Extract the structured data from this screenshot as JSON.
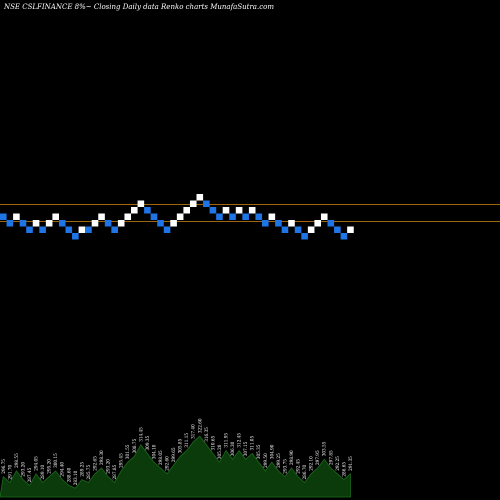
{
  "title": "NSE CSLFINANCE 8%~  Closing Daily data  Renko  charts MunafaSutra.com",
  "chart_data": {
    "type": "renko",
    "title": "NSE CSLFINANCE 8%~  Closing Daily data  Renko  charts MunafaSutra.com",
    "colors": {
      "up": "#ffffff",
      "down": "#1f74e6",
      "reference_line": "#a0660e",
      "volume_area": "#0b3a0b",
      "volume_edge": "#1c6b1c",
      "background": "#000000"
    },
    "reference_levels": [
      320.1,
      296.4
    ],
    "bricks": [
      {
        "dir": "down",
        "level": 1
      },
      {
        "dir": "down",
        "level": 0
      },
      {
        "dir": "up",
        "level": 1
      },
      {
        "dir": "down",
        "level": 0
      },
      {
        "dir": "down",
        "level": -1
      },
      {
        "dir": "up",
        "level": 0
      },
      {
        "dir": "down",
        "level": -1
      },
      {
        "dir": "up",
        "level": 0
      },
      {
        "dir": "up",
        "level": 1
      },
      {
        "dir": "down",
        "level": 0
      },
      {
        "dir": "down",
        "level": -1
      },
      {
        "dir": "down",
        "level": -2
      },
      {
        "dir": "up",
        "level": -1
      },
      {
        "dir": "down",
        "level": -1
      },
      {
        "dir": "up",
        "level": 0
      },
      {
        "dir": "up",
        "level": 1
      },
      {
        "dir": "down",
        "level": 0
      },
      {
        "dir": "down",
        "level": -1
      },
      {
        "dir": "up",
        "level": 0
      },
      {
        "dir": "up",
        "level": 1
      },
      {
        "dir": "up",
        "level": 2
      },
      {
        "dir": "up",
        "level": 3
      },
      {
        "dir": "down",
        "level": 2
      },
      {
        "dir": "down",
        "level": 1
      },
      {
        "dir": "down",
        "level": 0
      },
      {
        "dir": "down",
        "level": -1
      },
      {
        "dir": "up",
        "level": 0
      },
      {
        "dir": "up",
        "level": 1
      },
      {
        "dir": "up",
        "level": 2
      },
      {
        "dir": "up",
        "level": 3
      },
      {
        "dir": "up",
        "level": 4
      },
      {
        "dir": "down",
        "level": 3
      },
      {
        "dir": "down",
        "level": 2
      },
      {
        "dir": "down",
        "level": 1
      },
      {
        "dir": "up",
        "level": 2
      },
      {
        "dir": "down",
        "level": 1
      },
      {
        "dir": "up",
        "level": 2
      },
      {
        "dir": "down",
        "level": 1
      },
      {
        "dir": "up",
        "level": 2
      },
      {
        "dir": "down",
        "level": 1
      },
      {
        "dir": "down",
        "level": 0
      },
      {
        "dir": "up",
        "level": 1
      },
      {
        "dir": "down",
        "level": 0
      },
      {
        "dir": "down",
        "level": -1
      },
      {
        "dir": "up",
        "level": 0
      },
      {
        "dir": "down",
        "level": -1
      },
      {
        "dir": "down",
        "level": -2
      },
      {
        "dir": "up",
        "level": -1
      },
      {
        "dir": "up",
        "level": 0
      },
      {
        "dir": "up",
        "level": 1
      },
      {
        "dir": "down",
        "level": 0
      },
      {
        "dir": "down",
        "level": -1
      },
      {
        "dir": "down",
        "level": -2
      },
      {
        "dir": "up",
        "level": -1
      }
    ],
    "volume": [
      {
        "v": 7,
        "label": "296.75"
      },
      {
        "v": 5,
        "label": "291.70"
      },
      {
        "v": 9,
        "label": "298.55"
      },
      {
        "v": 6,
        "label": "293.20"
      },
      {
        "v": 4,
        "label": "287.45"
      },
      {
        "v": 8,
        "label": "294.05"
      },
      {
        "v": 5,
        "label": "289.10"
      },
      {
        "v": 7,
        "label": "295.20"
      },
      {
        "v": 9,
        "label": "300.15"
      },
      {
        "v": 6,
        "label": "294.40"
      },
      {
        "v": 4,
        "label": "288.60"
      },
      {
        "v": 3,
        "label": "283.10"
      },
      {
        "v": 6,
        "label": "289.25"
      },
      {
        "v": 5,
        "label": "285.75"
      },
      {
        "v": 8,
        "label": "292.65"
      },
      {
        "v": 10,
        "label": "298.30"
      },
      {
        "v": 7,
        "label": "293.20"
      },
      {
        "v": 5,
        "label": "287.85"
      },
      {
        "v": 9,
        "label": "295.45"
      },
      {
        "v": 12,
        "label": "301.55"
      },
      {
        "v": 14,
        "label": "308.75"
      },
      {
        "v": 18,
        "label": "314.45"
      },
      {
        "v": 15,
        "label": "309.35"
      },
      {
        "v": 12,
        "label": "304.10"
      },
      {
        "v": 10,
        "label": "298.05"
      },
      {
        "v": 8,
        "label": "292.60"
      },
      {
        "v": 11,
        "label": "299.65"
      },
      {
        "v": 14,
        "label": "305.85"
      },
      {
        "v": 16,
        "label": "311.15"
      },
      {
        "v": 19,
        "label": "317.40"
      },
      {
        "v": 21,
        "label": "322.60"
      },
      {
        "v": 18,
        "label": "316.35"
      },
      {
        "v": 15,
        "label": "310.65"
      },
      {
        "v": 12,
        "label": "305.20"
      },
      {
        "v": 16,
        "label": "311.95"
      },
      {
        "v": 13,
        "label": "306.30"
      },
      {
        "v": 16,
        "label": "312.45"
      },
      {
        "v": 13,
        "label": "307.15"
      },
      {
        "v": 15,
        "label": "311.05"
      },
      {
        "v": 12,
        "label": "305.35"
      },
      {
        "v": 9,
        "label": "299.50"
      },
      {
        "v": 12,
        "label": "304.90"
      },
      {
        "v": 9,
        "label": "299.25"
      },
      {
        "v": 7,
        "label": "293.75"
      },
      {
        "v": 10,
        "label": "298.90"
      },
      {
        "v": 7,
        "label": "292.45"
      },
      {
        "v": 5,
        "label": "286.70"
      },
      {
        "v": 8,
        "label": "292.10"
      },
      {
        "v": 10,
        "label": "297.95"
      },
      {
        "v": 13,
        "label": "303.55"
      },
      {
        "v": 10,
        "label": "297.85"
      },
      {
        "v": 8,
        "label": "292.25"
      },
      {
        "v": 6,
        "label": "286.65"
      },
      {
        "v": 8,
        "label": "291.35"
      }
    ]
  }
}
